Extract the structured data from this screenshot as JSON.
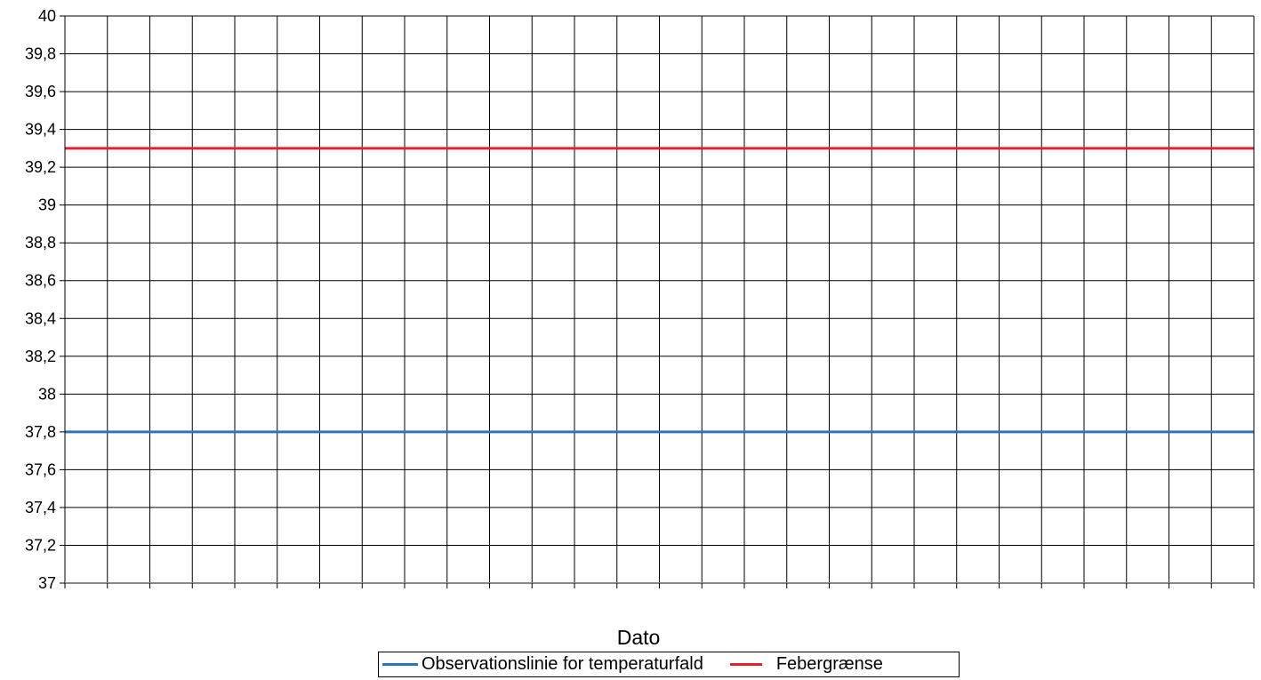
{
  "chart_data": {
    "type": "line",
    "title": "",
    "xlabel": "Dato",
    "ylabel": "",
    "ylim": [
      37,
      40
    ],
    "y_ticks": [
      "37",
      "37,2",
      "37,4",
      "37,6",
      "37,8",
      "38",
      "38,2",
      "38,4",
      "38,6",
      "38,8",
      "39",
      "39,2",
      "39,4",
      "39,6",
      "39,8",
      "40"
    ],
    "x_categories_count": 28,
    "grid": true,
    "legend_position": "bottom",
    "series": [
      {
        "name": "Observationslinie for temperaturfald",
        "color": "#2e75b6",
        "constant_value": 37.8
      },
      {
        "name": "Febergrænse",
        "color": "#e0202a",
        "constant_value": 39.3
      }
    ]
  }
}
